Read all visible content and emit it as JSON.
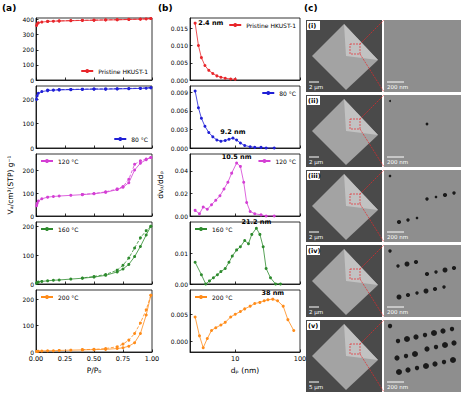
{
  "chart_data": [
    {
      "type": "line",
      "xlim": [
        0,
        1
      ],
      "xticks": [
        {
          "value": 0,
          "label": "0.00"
        },
        0.25,
        {
          "value": 0.5,
          "label": "0.50"
        },
        0.75,
        {
          "value": 1,
          "label": "1.00"
        }
      ],
      "ylim": [
        0,
        410
      ],
      "yticks": [
        0,
        100,
        200,
        300,
        400
      ],
      "tick_labels": "y",
      "legend": "lower right",
      "series": [
        {
          "name": "Pristine HKUST-1",
          "color": "#e8262b",
          "marker": "circle",
          "x": [
            0.005,
            0.01,
            0.02,
            0.05,
            0.1,
            0.15,
            0.2,
            0.3,
            0.4,
            0.5,
            0.6,
            0.7,
            0.8,
            0.9,
            0.95,
            0.99
          ],
          "values": [
            360,
            372,
            378,
            383,
            387,
            389,
            390,
            392,
            394,
            395,
            397,
            398,
            400,
            402,
            404,
            406
          ]
        },
        {
          "color": "#e8262b",
          "marker": "circle",
          "line_style": "dashed",
          "x": [
            0.99,
            0.9,
            0.8,
            0.7,
            0.6,
            0.5,
            0.4,
            0.3,
            0.2,
            0.1
          ],
          "values": [
            406,
            403,
            401,
            399,
            398,
            396,
            395,
            393,
            391,
            388
          ]
        }
      ]
    },
    {
      "type": "line",
      "xlim": [
        0,
        1
      ],
      "xticks": [
        {
          "value": 0,
          "label": "0.00"
        },
        0.25,
        {
          "value": 0.5,
          "label": "0.50"
        },
        0.75,
        {
          "value": 1,
          "label": "1.00"
        }
      ],
      "ylim": [
        0,
        255
      ],
      "yticks": [
        0,
        100,
        200
      ],
      "tick_labels": "y",
      "legend": "lower right",
      "series": [
        {
          "name": "80 °C",
          "color": "#1f1fd6",
          "marker": "circle",
          "x": [
            0.005,
            0.01,
            0.02,
            0.05,
            0.1,
            0.15,
            0.2,
            0.3,
            0.4,
            0.5,
            0.6,
            0.7,
            0.8,
            0.9,
            0.95,
            0.99
          ],
          "values": [
            200,
            215,
            225,
            232,
            236,
            238,
            239,
            240,
            241,
            242,
            242,
            243,
            244,
            245,
            246,
            248
          ]
        },
        {
          "color": "#1f1fd6",
          "marker": "circle",
          "line_style": "dashed",
          "x": [
            0.99,
            0.9,
            0.8,
            0.7,
            0.6,
            0.5,
            0.4,
            0.3,
            0.2,
            0.1
          ],
          "values": [
            248,
            246,
            245,
            244,
            243,
            243,
            242,
            241,
            240,
            238
          ]
        }
      ]
    },
    {
      "type": "line",
      "xlim": [
        0,
        1
      ],
      "xticks": [
        {
          "value": 0,
          "label": "0.00"
        },
        0.25,
        {
          "value": 0.5,
          "label": "0.50"
        },
        0.75,
        {
          "value": 1,
          "label": "1.00"
        }
      ],
      "ylim": [
        0,
        270
      ],
      "yticks": [
        0,
        100,
        200
      ],
      "tick_labels": "y",
      "legend": "upper left",
      "ylabel": "Vₐ/cm³(STP) g⁻¹",
      "series": [
        {
          "name": "120 °C",
          "color": "#d43fd4",
          "marker": "circle",
          "x": [
            0.005,
            0.01,
            0.02,
            0.05,
            0.1,
            0.15,
            0.2,
            0.3,
            0.4,
            0.5,
            0.6,
            0.7,
            0.75,
            0.8,
            0.85,
            0.9,
            0.95,
            0.99
          ],
          "values": [
            45,
            55,
            65,
            75,
            82,
            85,
            87,
            90,
            93,
            97,
            103,
            115,
            125,
            145,
            200,
            230,
            245,
            255
          ]
        },
        {
          "color": "#d43fd4",
          "marker": "circle",
          "line_style": "dashed",
          "x": [
            0.99,
            0.95,
            0.9,
            0.85,
            0.8,
            0.75,
            0.7,
            0.6,
            0.5,
            0.4
          ],
          "values": [
            255,
            248,
            240,
            225,
            160,
            128,
            118,
            105,
            98,
            94
          ]
        }
      ]
    },
    {
      "type": "line",
      "xlim": [
        0,
        1
      ],
      "xticks": [
        {
          "value": 0,
          "label": "0.00"
        },
        0.25,
        {
          "value": 0.5,
          "label": "0.50"
        },
        0.75,
        {
          "value": 1,
          "label": "1.00"
        }
      ],
      "ylim": [
        0,
        215
      ],
      "yticks": [
        0,
        100,
        200
      ],
      "tick_labels": "y",
      "legend": "upper left",
      "series": [
        {
          "name": "160 °C",
          "color": "#2e8b2e",
          "marker": "circle",
          "x": [
            0.005,
            0.01,
            0.02,
            0.05,
            0.1,
            0.15,
            0.2,
            0.3,
            0.4,
            0.5,
            0.6,
            0.7,
            0.75,
            0.8,
            0.85,
            0.9,
            0.95,
            0.99
          ],
          "values": [
            3,
            5,
            7,
            9,
            11,
            13,
            14,
            17,
            20,
            24,
            30,
            42,
            52,
            68,
            95,
            130,
            170,
            200
          ]
        },
        {
          "color": "#2e8b2e",
          "marker": "circle",
          "line_style": "dashed",
          "x": [
            0.99,
            0.95,
            0.9,
            0.85,
            0.8,
            0.75,
            0.7,
            0.6,
            0.5,
            0.4
          ],
          "values": [
            200,
            185,
            160,
            125,
            90,
            65,
            48,
            33,
            26,
            21
          ]
        }
      ]
    },
    {
      "type": "line",
      "xlim": [
        0,
        1
      ],
      "xticks": [
        {
          "value": 0,
          "label": "0.00"
        },
        0.25,
        {
          "value": 0.5,
          "label": "0.50"
        },
        0.75,
        {
          "value": 1,
          "label": "1.00"
        }
      ],
      "ylim": [
        0,
        235
      ],
      "yticks": [
        0,
        100,
        200
      ],
      "legend": "upper left",
      "xlabel": "P/P₀",
      "series": [
        {
          "name": "200 °C",
          "color": "#ff8c1a",
          "marker": "circle",
          "x": [
            0.005,
            0.01,
            0.02,
            0.05,
            0.1,
            0.15,
            0.2,
            0.3,
            0.4,
            0.5,
            0.6,
            0.7,
            0.75,
            0.8,
            0.85,
            0.9,
            0.95,
            0.99
          ],
          "values": [
            2,
            3,
            3,
            4,
            5,
            5,
            6,
            7,
            8,
            9,
            10,
            13,
            16,
            22,
            35,
            70,
            140,
            215
          ]
        },
        {
          "color": "#ff8c1a",
          "marker": "circle",
          "line_style": "dashed",
          "x": [
            0.99,
            0.95,
            0.9,
            0.85,
            0.8,
            0.75,
            0.7,
            0.6,
            0.5,
            0.4
          ],
          "values": [
            215,
            160,
            110,
            70,
            45,
            30,
            20,
            13,
            10,
            9
          ]
        }
      ]
    },
    {
      "type": "line",
      "log": "x",
      "xlim": [
        2,
        100
      ],
      "xticks": [
        10,
        100
      ],
      "ylim": [
        0,
        0.018
      ],
      "yticks": [
        {
          "value": 0,
          "label": "0.000"
        },
        0.005,
        {
          "value": 0.01,
          "label": "0.010"
        },
        0.015
      ],
      "tick_labels": "y",
      "legend": "upper right",
      "annotations": [
        {
          "text": "2.4 nm",
          "x": 2.4,
          "y": 0.0165
        }
      ],
      "series": [
        {
          "name": "Pristine HKUST-1",
          "color": "#e8262b",
          "marker": "circle",
          "x": [
            2.4,
            2.7,
            3.0,
            3.4,
            3.9,
            4.5,
            5.2,
            6,
            7,
            8.5,
            10
          ],
          "values": [
            0.0165,
            0.01,
            0.0065,
            0.0042,
            0.0028,
            0.0019,
            0.0012,
            0.0008,
            0.0005,
            0.0003,
            0.0002
          ]
        }
      ]
    },
    {
      "type": "line",
      "log": "x",
      "xlim": [
        2,
        100
      ],
      "xticks": [
        10,
        100
      ],
      "ylim": [
        0,
        0.01
      ],
      "yticks": [
        {
          "value": 0,
          "label": "0.000"
        },
        0.003,
        0.006,
        0.009
      ],
      "tick_labels": "y",
      "legend": "upper right",
      "annotations": [
        {
          "text": "9.2 nm",
          "x": 9.2,
          "y": 0.0016
        }
      ],
      "series": [
        {
          "name": "80 °C",
          "color": "#1f1fd6",
          "marker": "circle",
          "x": [
            2.4,
            2.7,
            3,
            3.4,
            3.9,
            4.5,
            5.2,
            6,
            7,
            8,
            9.2,
            10.5,
            12,
            14,
            17,
            20,
            25,
            30,
            40
          ],
          "values": [
            0.0092,
            0.0065,
            0.0048,
            0.0035,
            0.0025,
            0.0018,
            0.0013,
            0.0011,
            0.0012,
            0.0014,
            0.0016,
            0.0013,
            0.0008,
            0.0004,
            0.0002,
            0.0001,
            0.0001,
            0,
            0
          ]
        }
      ]
    },
    {
      "type": "line",
      "log": "x",
      "xlim": [
        2,
        100
      ],
      "xticks": [
        10,
        100
      ],
      "ylim": [
        0,
        0.055
      ],
      "yticks": [
        {
          "value": 0,
          "label": "0.00"
        },
        0.02,
        0.04
      ],
      "tick_labels": "y",
      "legend": "upper right",
      "ylabel": "dvₚ/ddₚ",
      "annotations": [
        {
          "text": "10.5 nm",
          "x": 10.5,
          "y": 0.047
        }
      ],
      "series": [
        {
          "name": "120 °C",
          "color": "#d43fd4",
          "marker": "circle",
          "x": [
            2.4,
            2.8,
            3.2,
            3.7,
            4.3,
            5,
            5.8,
            6.7,
            7.7,
            8.8,
            10.5,
            12,
            13.5,
            15,
            17,
            20,
            25,
            30,
            40
          ],
          "values": [
            0.005,
            0.002,
            0.008,
            0.006,
            0.01,
            0.014,
            0.018,
            0.024,
            0.03,
            0.038,
            0.047,
            0.044,
            0.03,
            0.012,
            0.004,
            0.002,
            0.001,
            0,
            0
          ]
        }
      ]
    },
    {
      "type": "line",
      "log": "x",
      "xlim": [
        2,
        100
      ],
      "xticks": [
        10,
        100
      ],
      "ylim": [
        0,
        0.02
      ],
      "yticks": [
        {
          "value": 0,
          "label": "0.00"
        },
        0.01
      ],
      "tick_labels": "y",
      "legend": "upper left",
      "annotations": [
        {
          "text": "21.2 nm",
          "x": 21.2,
          "y": 0.018
        }
      ],
      "series": [
        {
          "name": "160 °C",
          "color": "#2e8b2e",
          "marker": "circle",
          "x": [
            2.4,
            3,
            3.5,
            4,
            4.6,
            5.3,
            6,
            7,
            8,
            9,
            10.5,
            12,
            14,
            16,
            18,
            21.2,
            24,
            27,
            30,
            35,
            42,
            50
          ],
          "values": [
            0.007,
            0.003,
            0,
            0.001,
            0.002,
            0.003,
            0.004,
            0.005,
            0.007,
            0.009,
            0.011,
            0.012,
            0.014,
            0.013,
            0.016,
            0.018,
            0.016,
            0.012,
            0.005,
            0.002,
            0,
            0
          ]
        }
      ]
    },
    {
      "type": "line",
      "log": "x",
      "xlim": [
        2,
        100
      ],
      "xticks": [
        10,
        100
      ],
      "ylim": [
        -0.002,
        0.0095
      ],
      "yticks": [
        {
          "value": 0,
          "label": "0.000"
        },
        0.005
      ],
      "legend": "upper left",
      "xlabel": "dₚ (nm)",
      "annotations": [
        {
          "text": "38 nm",
          "x": 38,
          "y": 0.0078
        }
      ],
      "series": [
        {
          "name": "200 °C",
          "color": "#ff8c1a",
          "marker": "circle",
          "x": [
            2.4,
            2.8,
            3.2,
            3.7,
            4.3,
            5,
            6,
            7,
            8.5,
            10,
            12,
            14,
            17,
            20,
            24,
            28,
            32,
            38,
            45,
            55,
            65,
            80
          ],
          "values": [
            0.0045,
            0.001,
            -0.0012,
            0.0005,
            0.002,
            0.0025,
            0.003,
            0.0035,
            0.0045,
            0.005,
            0.0055,
            0.006,
            0.0065,
            0.007,
            0.0072,
            0.0075,
            0.0077,
            0.0078,
            0.0075,
            0.0065,
            0.004,
            0.002
          ]
        }
      ]
    }
  ],
  "panel_labels": [
    "(a)",
    "(b)",
    "(c)"
  ],
  "images": [
    {
      "label": "(i)",
      "scale_bars": [
        "2 μm",
        "200 nm"
      ]
    },
    {
      "label": "(ii)",
      "scale_bars": [
        "2 μm",
        "200 nm"
      ]
    },
    {
      "label": "(iii)",
      "scale_bars": [
        "2 μm",
        "200 nm"
      ]
    },
    {
      "label": "(iv)",
      "scale_bars": [
        "2 μm",
        "200 nm"
      ]
    },
    {
      "label": "(v)",
      "scale_bars": [
        "5 μm",
        "200 nm"
      ]
    }
  ]
}
